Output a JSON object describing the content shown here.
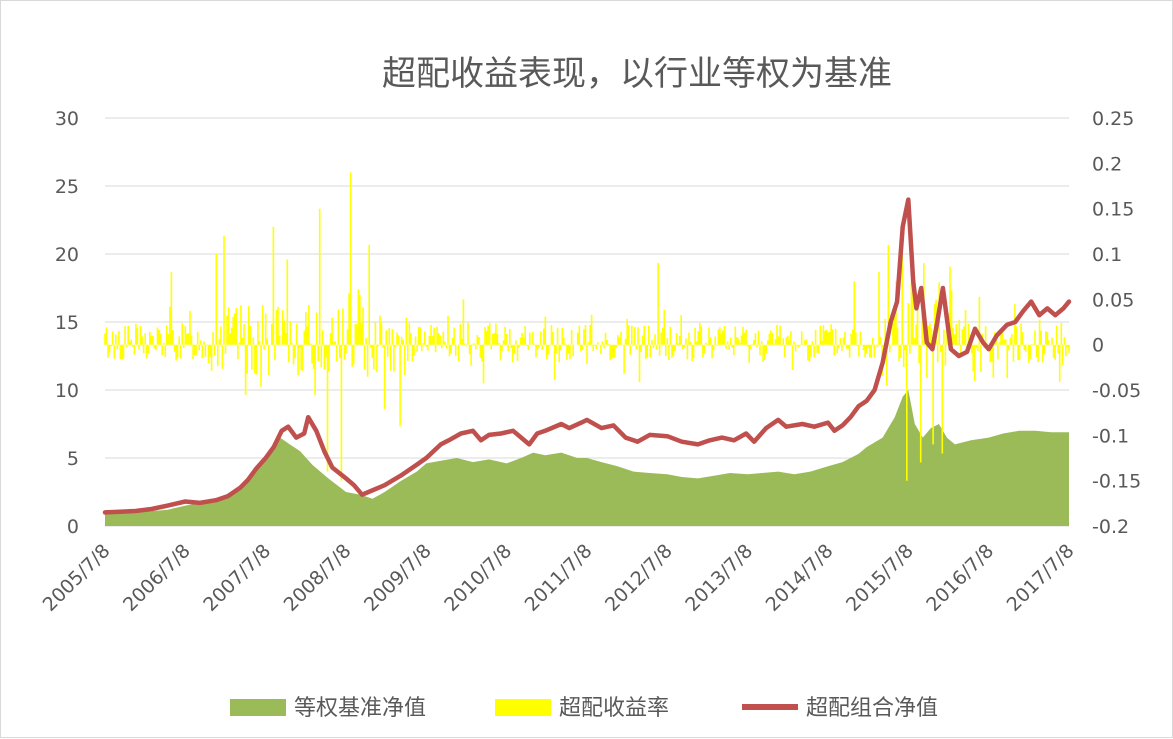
{
  "chart_data": {
    "type": "line",
    "title": "超配收益表现，以行业等权为基准",
    "x_ticks": [
      "2005/7/8",
      "2006/7/8",
      "2007/7/8",
      "2008/7/8",
      "2009/7/8",
      "2010/7/8",
      "2011/7/8",
      "2012/7/8",
      "2013/7/8",
      "2014/7/8",
      "2015/7/8",
      "2016/7/8",
      "2017/7/8"
    ],
    "x_range": [
      2005.52,
      2017.52
    ],
    "y_left": {
      "range": [
        0,
        30
      ],
      "ticks": [
        "0",
        "5",
        "10",
        "15",
        "20",
        "25",
        "30"
      ]
    },
    "y_right": {
      "range": [
        -0.2,
        0.25
      ],
      "ticks": [
        "-0.2",
        "-0.15",
        "-0.1",
        "-0.05",
        "0",
        "0.05",
        "0.1",
        "0.15",
        "0.2",
        "0.25"
      ]
    },
    "grid": "horizontal",
    "legend_position": "bottom",
    "colors": {
      "benchmark": "#9bbb59",
      "excess": "#ffff00",
      "portfolio": "#c0504d",
      "grid": "#d9d9d9",
      "text": "#595959"
    },
    "series": [
      {
        "name": "等权基准净值",
        "type": "area",
        "axis": "left",
        "x": [
          2005.52,
          2005.8,
          2006.0,
          2006.3,
          2006.52,
          2006.8,
          2007.0,
          2007.2,
          2007.4,
          2007.52,
          2007.7,
          2007.82,
          2007.95,
          2008.1,
          2008.3,
          2008.52,
          2008.7,
          2008.85,
          2009.0,
          2009.2,
          2009.4,
          2009.52,
          2009.7,
          2009.9,
          2010.1,
          2010.3,
          2010.52,
          2010.7,
          2010.85,
          2011.0,
          2011.2,
          2011.4,
          2011.52,
          2011.7,
          2011.9,
          2012.1,
          2012.3,
          2012.52,
          2012.7,
          2012.9,
          2013.1,
          2013.3,
          2013.52,
          2013.7,
          2013.9,
          2014.1,
          2014.3,
          2014.52,
          2014.7,
          2014.9,
          2015.0,
          2015.2,
          2015.35,
          2015.45,
          2015.52,
          2015.6,
          2015.7,
          2015.8,
          2015.9,
          2016.0,
          2016.1,
          2016.3,
          2016.52,
          2016.7,
          2016.9,
          2017.1,
          2017.3,
          2017.52
        ],
        "values": [
          1.0,
          1.0,
          1.05,
          1.2,
          1.5,
          1.8,
          2.0,
          2.6,
          4.0,
          4.8,
          6.5,
          6.0,
          5.5,
          4.5,
          3.5,
          2.5,
          2.3,
          2.0,
          2.5,
          3.3,
          4.0,
          4.6,
          4.8,
          5.0,
          4.7,
          4.9,
          4.6,
          5.0,
          5.4,
          5.2,
          5.4,
          5.0,
          5.0,
          4.7,
          4.4,
          4.0,
          3.9,
          3.8,
          3.6,
          3.5,
          3.7,
          3.9,
          3.8,
          3.9,
          4.0,
          3.8,
          4.0,
          4.4,
          4.7,
          5.3,
          5.8,
          6.5,
          8.0,
          9.5,
          10.0,
          7.5,
          6.5,
          7.2,
          7.5,
          6.5,
          6.0,
          6.3,
          6.5,
          6.8,
          7.0,
          7.0,
          6.9,
          6.9
        ]
      },
      {
        "name": "超配收益率",
        "type": "bar",
        "axis": "right",
        "seed": 13,
        "spikes": [
          [
            2007.62,
            0.13
          ],
          [
            2008.2,
            0.15
          ],
          [
            2008.28,
            -0.14
          ],
          [
            2008.47,
            -0.15
          ],
          [
            2008.58,
            0.19
          ],
          [
            2008.8,
            0.11
          ],
          [
            2009.2,
            -0.09
          ],
          [
            2006.35,
            0.08
          ],
          [
            2006.9,
            0.1
          ],
          [
            2007.0,
            0.12
          ],
          [
            2012.4,
            0.09
          ],
          [
            2014.85,
            0.07
          ],
          [
            2015.15,
            0.08
          ],
          [
            2015.27,
            0.11
          ],
          [
            2015.45,
            0.12
          ],
          [
            2015.5,
            -0.15
          ],
          [
            2015.58,
            0.1
          ],
          [
            2015.67,
            -0.13
          ],
          [
            2015.72,
            0.09
          ],
          [
            2015.83,
            -0.11
          ],
          [
            2015.95,
            -0.12
          ],
          [
            2016.05,
            0.06
          ],
          [
            2016.35,
            -0.04
          ]
        ]
      },
      {
        "name": "超配组合净值",
        "type": "line",
        "axis": "left",
        "x": [
          2005.52,
          2005.7,
          2005.9,
          2006.1,
          2006.3,
          2006.52,
          2006.7,
          2006.9,
          2007.05,
          2007.2,
          2007.3,
          2007.4,
          2007.52,
          2007.62,
          2007.72,
          2007.8,
          2007.9,
          2008.0,
          2008.05,
          2008.15,
          2008.25,
          2008.35,
          2008.52,
          2008.62,
          2008.72,
          2008.8,
          2009.0,
          2009.2,
          2009.4,
          2009.52,
          2009.7,
          2009.8,
          2009.95,
          2010.1,
          2010.2,
          2010.3,
          2010.45,
          2010.6,
          2010.8,
          2010.9,
          2011.0,
          2011.2,
          2011.3,
          2011.45,
          2011.52,
          2011.7,
          2011.85,
          2012.0,
          2012.15,
          2012.3,
          2012.52,
          2012.7,
          2012.9,
          2013.05,
          2013.2,
          2013.35,
          2013.5,
          2013.6,
          2013.75,
          2013.9,
          2014.0,
          2014.2,
          2014.35,
          2014.52,
          2014.6,
          2014.7,
          2014.8,
          2014.9,
          2015.0,
          2015.1,
          2015.2,
          2015.3,
          2015.38,
          2015.45,
          2015.52,
          2015.58,
          2015.62,
          2015.68,
          2015.75,
          2015.82,
          2015.88,
          2015.95,
          2016.05,
          2016.15,
          2016.25,
          2016.35,
          2016.45,
          2016.52,
          2016.62,
          2016.75,
          2016.85,
          2016.95,
          2017.05,
          2017.15,
          2017.25,
          2017.35,
          2017.45,
          2017.52
        ],
        "values": [
          1.0,
          1.05,
          1.1,
          1.25,
          1.5,
          1.8,
          1.7,
          1.9,
          2.2,
          2.8,
          3.4,
          4.2,
          5.0,
          5.8,
          7.0,
          7.3,
          6.5,
          6.8,
          8.0,
          7.0,
          5.5,
          4.3,
          3.5,
          3.0,
          2.3,
          2.5,
          3.0,
          3.7,
          4.5,
          5.0,
          6.0,
          6.3,
          6.8,
          7.0,
          6.3,
          6.7,
          6.8,
          7.0,
          6.0,
          6.8,
          7.0,
          7.5,
          7.2,
          7.6,
          7.8,
          7.2,
          7.4,
          6.5,
          6.2,
          6.7,
          6.6,
          6.2,
          6.0,
          6.3,
          6.5,
          6.3,
          6.8,
          6.2,
          7.2,
          7.8,
          7.3,
          7.5,
          7.3,
          7.6,
          7.0,
          7.4,
          8.0,
          8.8,
          9.2,
          10.0,
          12.0,
          15.0,
          16.5,
          22.0,
          24.0,
          18.0,
          16.0,
          17.5,
          13.5,
          13.0,
          15.0,
          17.5,
          13.0,
          12.5,
          12.8,
          14.5,
          13.5,
          13.0,
          14.0,
          14.8,
          15.0,
          15.8,
          16.5,
          15.5,
          16.0,
          15.5,
          16.0,
          16.5
        ]
      }
    ]
  }
}
